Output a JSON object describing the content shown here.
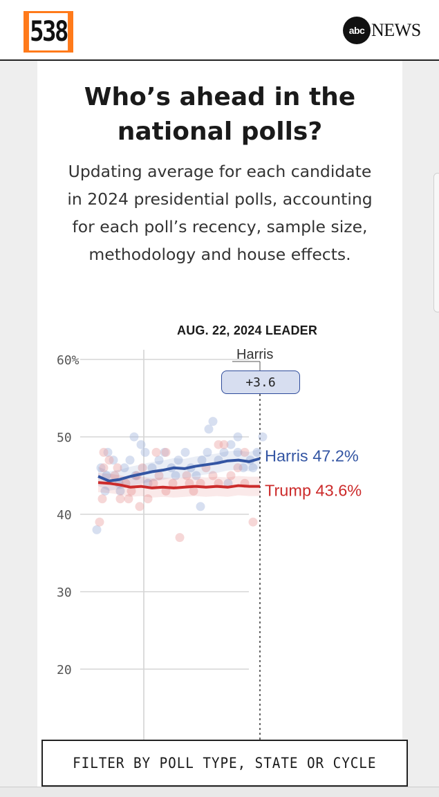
{
  "header": {
    "logo_text": "538",
    "abc_logo": "abc",
    "news_label": "NEWS"
  },
  "card": {
    "title": "Who’s ahead in the national polls?",
    "subtitle": "Updating average for each candidate in 2024 presidential polls, accounting for each poll’s recency, sample size, methodology and house effects.",
    "leader": {
      "label": "AUG. 22, 2024 LEADER",
      "name": "Harris",
      "margin": "+3.6"
    }
  },
  "chart_data": {
    "type": "line",
    "y_ticks": [
      "60%",
      "50",
      "40",
      "30",
      "20"
    ],
    "ylim": [
      17,
      62
    ],
    "grid": true,
    "series": [
      {
        "name": "Harris",
        "label": "Harris 47.2%",
        "color": "#3355a3",
        "values": [
          44.9,
          44.3,
          44.5,
          44.9,
          45.2,
          45.5,
          45.7,
          46.0,
          45.9,
          46.2,
          46.4,
          46.6,
          46.9,
          47.0,
          46.8,
          47.2
        ]
      },
      {
        "name": "Trump",
        "label": "Trump 43.6%",
        "color": "#cc2b2b",
        "values": [
          44.1,
          44.0,
          43.8,
          43.5,
          43.6,
          43.4,
          43.5,
          43.4,
          43.5,
          43.6,
          43.5,
          43.6,
          43.5,
          43.7,
          43.6,
          43.6
        ]
      }
    ]
  },
  "filter_button": {
    "label": "FILTER BY POLL TYPE, STATE OR CYCLE"
  },
  "colors": {
    "accent_orange": "#ff7a1a",
    "harris_blue": "#3355a3",
    "trump_red": "#cc2b2b"
  }
}
